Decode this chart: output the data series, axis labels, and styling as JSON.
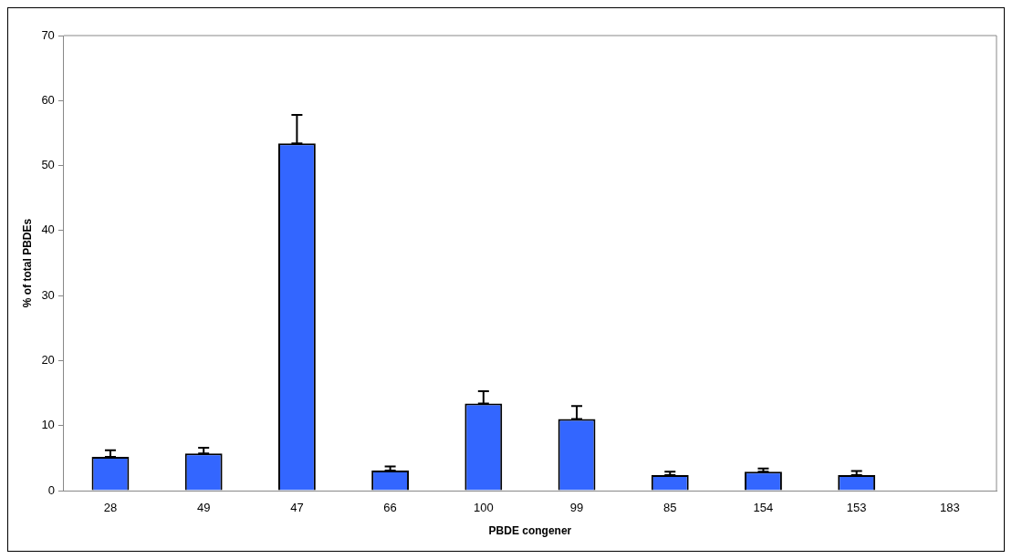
{
  "chart_data": {
    "type": "bar",
    "xlabel": "PBDE congener",
    "ylabel": "% of total PBDEs",
    "categories": [
      "28",
      "49",
      "47",
      "66",
      "100",
      "99",
      "85",
      "154",
      "153",
      "183"
    ],
    "values": [
      5.2,
      5.7,
      53.4,
      3.1,
      13.4,
      11.0,
      2.4,
      2.9,
      2.4,
      0
    ],
    "errors": [
      [
        5.2,
        6.2
      ],
      [
        5.7,
        6.6
      ],
      [
        53.4,
        57.8
      ],
      [
        3.1,
        3.7
      ],
      [
        13.4,
        15.3
      ],
      [
        11.0,
        13.0
      ],
      [
        2.4,
        2.9
      ],
      [
        2.9,
        3.4
      ],
      [
        2.4,
        3.0
      ],
      null
    ],
    "color": "#3366ff",
    "ylim": [
      0,
      70
    ],
    "yticks": [
      0,
      10,
      20,
      30,
      40,
      50,
      60,
      70
    ],
    "grid": false,
    "legend": false
  }
}
